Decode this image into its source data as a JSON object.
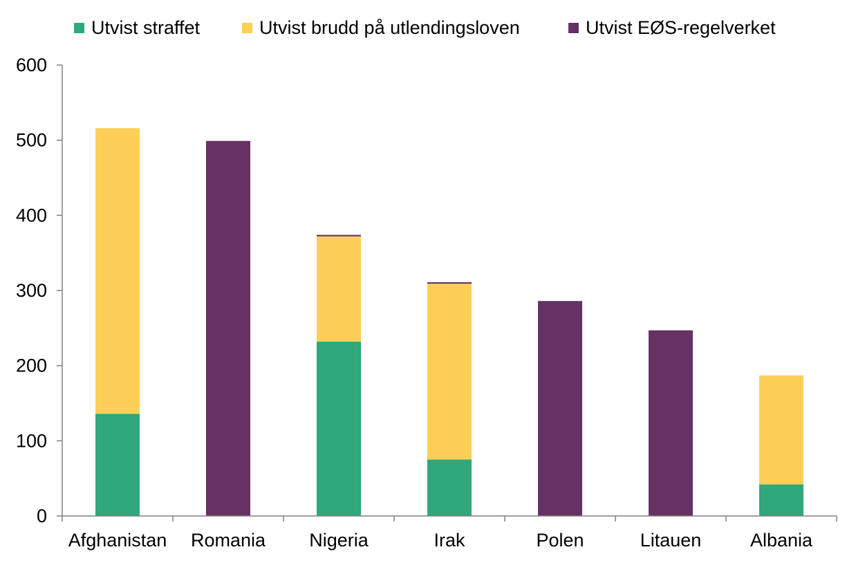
{
  "chart_data": {
    "type": "bar",
    "stacked": true,
    "title": "",
    "xlabel": "",
    "ylabel": "",
    "ylim": [
      0,
      600
    ],
    "yticks": [
      0,
      100,
      200,
      300,
      400,
      500,
      600
    ],
    "grid": false,
    "legend_position": "top",
    "categories": [
      "Afghanistan",
      "Romania",
      "Nigeria",
      "Irak",
      "Polen",
      "Litauen",
      "Albania"
    ],
    "series": [
      {
        "name": "Utvist straffet",
        "color": "#2fa87b",
        "values": [
          136,
          0,
          232,
          75,
          0,
          0,
          42
        ]
      },
      {
        "name": "Utvist brudd på utlendingsloven",
        "color": "#fdcf57",
        "values": [
          380,
          0,
          140,
          234,
          0,
          0,
          145
        ]
      },
      {
        "name": "Utvist EØS-regelverket",
        "color": "#663163",
        "values": [
          0,
          499,
          2,
          2,
          286,
          247,
          0
        ]
      }
    ]
  }
}
